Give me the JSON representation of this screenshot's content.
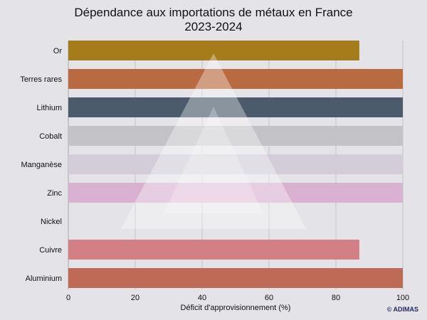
{
  "chart_data": {
    "type": "bar",
    "orientation": "horizontal",
    "title_lines": [
      "Dépendance aux importations de métaux en France",
      "2023-2024"
    ],
    "xlabel": "Déficit d'approvisionnement (%)",
    "ylabel": "",
    "xlim": [
      0,
      100
    ],
    "xticks": [
      0,
      20,
      40,
      60,
      80,
      100
    ],
    "grid": true,
    "categories": [
      "Or",
      "Terres rares",
      "Lithium",
      "Cobalt",
      "Manganèse",
      "Zinc",
      "Nickel",
      "Cuivre",
      "Aluminium"
    ],
    "values": [
      87,
      100,
      100,
      100,
      100,
      100,
      0,
      87,
      100
    ],
    "colors": [
      "#a67c1a",
      "#b96a40",
      "#4b5b6b",
      "#c3c2c6",
      "#d3ccd9",
      "#dab2d1",
      "#e4e3e8",
      "#d37f85",
      "#bf6a57"
    ]
  },
  "credit": "© ADIMAS"
}
